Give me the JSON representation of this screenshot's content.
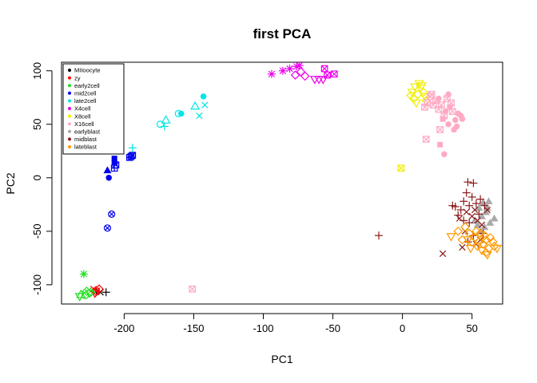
{
  "chart_data": {
    "type": "scatter",
    "title": "first PCA",
    "xlabel": "PC1",
    "ylabel": "PC2",
    "xlim": [
      -245,
      72
    ],
    "ylim": [
      -118,
      108
    ],
    "xticks": [
      -200,
      -150,
      -100,
      -50,
      0,
      50
    ],
    "yticks": [
      -100,
      -50,
      0,
      50,
      100
    ],
    "grid": false,
    "legend_position": "top-left",
    "series": [
      {
        "name": "MIIoocyte",
        "color": "#000000",
        "points": [
          {
            "x": -220,
            "y": -107,
            "shape": "plus"
          },
          {
            "x": -217,
            "y": -107,
            "shape": "cross"
          },
          {
            "x": -213,
            "y": -107,
            "shape": "plus"
          }
        ]
      },
      {
        "name": "zy",
        "color": "#ff0000",
        "points": [
          {
            "x": -222,
            "y": -104,
            "shape": "cross"
          },
          {
            "x": -220,
            "y": -106,
            "shape": "box-x"
          },
          {
            "x": -218,
            "y": -104,
            "shape": "diamond-open"
          },
          {
            "x": -221,
            "y": -108,
            "shape": "triangle-down"
          }
        ]
      },
      {
        "name": "early2cell",
        "color": "#22dd22",
        "points": [
          {
            "x": -229,
            "y": -90,
            "shape": "asterisk"
          },
          {
            "x": -227,
            "y": -106,
            "shape": "diamond-open"
          },
          {
            "x": -225,
            "y": -108,
            "shape": "triangle-down"
          },
          {
            "x": -231,
            "y": -109,
            "shape": "triangle-open"
          },
          {
            "x": -228,
            "y": -110,
            "shape": "circle-open"
          },
          {
            "x": -224,
            "y": -107,
            "shape": "diamond-open"
          },
          {
            "x": -232,
            "y": -111,
            "shape": "triangle-down"
          }
        ]
      },
      {
        "name": "mid2cell",
        "color": "#0000ee",
        "points": [
          {
            "x": -212,
            "y": 7,
            "shape": "triangle-filled"
          },
          {
            "x": -211,
            "y": 0,
            "shape": "circle-filled"
          },
          {
            "x": -209,
            "y": -34,
            "shape": "circle-x"
          },
          {
            "x": -212,
            "y": -47,
            "shape": "circle-x"
          },
          {
            "x": -207,
            "y": 18,
            "shape": "square-filled"
          },
          {
            "x": -207,
            "y": 14,
            "shape": "square-filled"
          },
          {
            "x": -207,
            "y": 9,
            "shape": "box-plus"
          },
          {
            "x": -206,
            "y": 12,
            "shape": "box-x"
          },
          {
            "x": -195,
            "y": 20,
            "shape": "box-plus"
          },
          {
            "x": -194,
            "y": 21,
            "shape": "box-x"
          },
          {
            "x": -196,
            "y": 19,
            "shape": "box-plus"
          }
        ]
      },
      {
        "name": "late2cell",
        "color": "#00e5e5",
        "points": [
          {
            "x": -194,
            "y": 28,
            "shape": "plus"
          },
          {
            "x": -174,
            "y": 50,
            "shape": "circle-open"
          },
          {
            "x": -170,
            "y": 54,
            "shape": "triangle-open"
          },
          {
            "x": -171,
            "y": 48,
            "shape": "plus"
          },
          {
            "x": -161,
            "y": 60,
            "shape": "circle-open"
          },
          {
            "x": -159,
            "y": 60,
            "shape": "circle-filled"
          },
          {
            "x": -149,
            "y": 67,
            "shape": "triangle-open"
          },
          {
            "x": -146,
            "y": 58,
            "shape": "cross"
          },
          {
            "x": -142,
            "y": 68,
            "shape": "cross"
          },
          {
            "x": -143,
            "y": 76,
            "shape": "circle-filled"
          }
        ]
      },
      {
        "name": "X4cell",
        "color": "#ee00ee",
        "points": [
          {
            "x": -94,
            "y": 97,
            "shape": "asterisk"
          },
          {
            "x": -86,
            "y": 100,
            "shape": "asterisk"
          },
          {
            "x": -81,
            "y": 102,
            "shape": "asterisk"
          },
          {
            "x": -76,
            "y": 104,
            "shape": "asterisk"
          },
          {
            "x": -74,
            "y": 105,
            "shape": "asterisk"
          },
          {
            "x": -77,
            "y": 96,
            "shape": "diamond-open"
          },
          {
            "x": -73,
            "y": 99,
            "shape": "diamond-open"
          },
          {
            "x": -70,
            "y": 95,
            "shape": "diamond-open"
          },
          {
            "x": -63,
            "y": 92,
            "shape": "triangle-down"
          },
          {
            "x": -60,
            "y": 92,
            "shape": "triangle-down"
          },
          {
            "x": -57,
            "y": 92,
            "shape": "triangle-down"
          },
          {
            "x": -56,
            "y": 102,
            "shape": "box-x"
          },
          {
            "x": -54,
            "y": 96,
            "shape": "box-x"
          },
          {
            "x": -49,
            "y": 97,
            "shape": "box-x"
          }
        ]
      },
      {
        "name": "X8cell",
        "color": "#eeee00",
        "points": [
          {
            "x": 7,
            "y": 80,
            "shape": "triangle-down"
          },
          {
            "x": 9,
            "y": 85,
            "shape": "triangle-down"
          },
          {
            "x": 11,
            "y": 78,
            "shape": "diamond-open"
          },
          {
            "x": 13,
            "y": 84,
            "shape": "triangle-down"
          },
          {
            "x": 8,
            "y": 74,
            "shape": "diamond-open"
          },
          {
            "x": 15,
            "y": 80,
            "shape": "diamond-open"
          },
          {
            "x": 10,
            "y": 70,
            "shape": "triangle-down"
          },
          {
            "x": 16,
            "y": 76,
            "shape": "triangle-down"
          },
          {
            "x": 12,
            "y": 88,
            "shape": "triangle-down"
          },
          {
            "x": 6,
            "y": 77,
            "shape": "diamond-open"
          },
          {
            "x": 17,
            "y": 72,
            "shape": "diamond-open"
          },
          {
            "x": 14,
            "y": 86,
            "shape": "triangle-down"
          },
          {
            "x": -1,
            "y": 9,
            "shape": "box-x"
          }
        ]
      },
      {
        "name": "X16cell",
        "color": "#ffaac4",
        "points": [
          {
            "x": 20,
            "y": 76,
            "shape": "box-x"
          },
          {
            "x": 24,
            "y": 72,
            "shape": "box-x"
          },
          {
            "x": 28,
            "y": 68,
            "shape": "box-x"
          },
          {
            "x": 32,
            "y": 74,
            "shape": "box-x"
          },
          {
            "x": 35,
            "y": 70,
            "shape": "box-x"
          },
          {
            "x": 26,
            "y": 64,
            "shape": "box-x"
          },
          {
            "x": 36,
            "y": 62,
            "shape": "box-x"
          },
          {
            "x": 40,
            "y": 60,
            "shape": "circle-filled"
          },
          {
            "x": 42,
            "y": 58,
            "shape": "circle-filled"
          },
          {
            "x": 30,
            "y": 58,
            "shape": "box-x"
          },
          {
            "x": 38,
            "y": 54,
            "shape": "circle-filled"
          },
          {
            "x": 22,
            "y": 68,
            "shape": "box-x"
          },
          {
            "x": 34,
            "y": 66,
            "shape": "square-filled"
          },
          {
            "x": 29,
            "y": 55,
            "shape": "square-filled"
          },
          {
            "x": 26,
            "y": 74,
            "shape": "circle-filled"
          },
          {
            "x": 18,
            "y": 70,
            "shape": "box-x"
          },
          {
            "x": 31,
            "y": 62,
            "shape": "circle-filled"
          },
          {
            "x": 16,
            "y": 66,
            "shape": "box-x"
          },
          {
            "x": 39,
            "y": 48,
            "shape": "circle-filled"
          },
          {
            "x": 27,
            "y": 45,
            "shape": "box-x"
          },
          {
            "x": 33,
            "y": 50,
            "shape": "circle-filled"
          },
          {
            "x": 37,
            "y": 45,
            "shape": "circle-filled"
          },
          {
            "x": 17,
            "y": 36,
            "shape": "box-x"
          },
          {
            "x": 27,
            "y": 31,
            "shape": "square-filled"
          },
          {
            "x": 30,
            "y": 22,
            "shape": "circle-filled"
          },
          {
            "x": 21,
            "y": 78,
            "shape": "box-x"
          },
          {
            "x": 33,
            "y": 78,
            "shape": "circle-filled"
          },
          {
            "x": 43,
            "y": 55,
            "shape": "circle-filled"
          },
          {
            "x": -151,
            "y": -104,
            "shape": "box-x"
          }
        ]
      },
      {
        "name": "earlyblast",
        "color": "#aaaaaa",
        "points": [
          {
            "x": 55,
            "y": -28,
            "shape": "triangle-filled"
          },
          {
            "x": 58,
            "y": -23,
            "shape": "triangle-filled"
          },
          {
            "x": 62,
            "y": -22,
            "shape": "triangle-filled"
          },
          {
            "x": 60,
            "y": -32,
            "shape": "triangle-filled"
          },
          {
            "x": 66,
            "y": -38,
            "shape": "triangle-filled"
          },
          {
            "x": 57,
            "y": -36,
            "shape": "triangle-filled"
          },
          {
            "x": 63,
            "y": -42,
            "shape": "triangle-filled"
          },
          {
            "x": 54,
            "y": -44,
            "shape": "triangle-filled"
          },
          {
            "x": 59,
            "y": -46,
            "shape": "triangle-filled"
          },
          {
            "x": 52,
            "y": -40,
            "shape": "triangle-filled"
          },
          {
            "x": 61,
            "y": -28,
            "shape": "triangle-filled"
          },
          {
            "x": 56,
            "y": -50,
            "shape": "triangle-filled"
          }
        ]
      },
      {
        "name": "midblast",
        "color": "#8b1a1a",
        "points": [
          {
            "x": 47,
            "y": -4,
            "shape": "plus"
          },
          {
            "x": 51,
            "y": -5,
            "shape": "plus"
          },
          {
            "x": 46,
            "y": -14,
            "shape": "plus"
          },
          {
            "x": 50,
            "y": -18,
            "shape": "plus"
          },
          {
            "x": 44,
            "y": -22,
            "shape": "plus"
          },
          {
            "x": 48,
            "y": -26,
            "shape": "plus"
          },
          {
            "x": 53,
            "y": -24,
            "shape": "plus"
          },
          {
            "x": 56,
            "y": -20,
            "shape": "plus"
          },
          {
            "x": 38,
            "y": -27,
            "shape": "plus"
          },
          {
            "x": 42,
            "y": -30,
            "shape": "plus"
          },
          {
            "x": 46,
            "y": -32,
            "shape": "cross"
          },
          {
            "x": 50,
            "y": -36,
            "shape": "cross"
          },
          {
            "x": 54,
            "y": -40,
            "shape": "cross"
          },
          {
            "x": 57,
            "y": -44,
            "shape": "cross"
          },
          {
            "x": 44,
            "y": -40,
            "shape": "plus"
          },
          {
            "x": 41,
            "y": -38,
            "shape": "cross"
          },
          {
            "x": 48,
            "y": -42,
            "shape": "plus"
          },
          {
            "x": 52,
            "y": -30,
            "shape": "cross"
          },
          {
            "x": 55,
            "y": -34,
            "shape": "plus"
          },
          {
            "x": 59,
            "y": -26,
            "shape": "plus"
          },
          {
            "x": 61,
            "y": -30,
            "shape": "cross"
          },
          {
            "x": 45,
            "y": -50,
            "shape": "cross"
          },
          {
            "x": 51,
            "y": -54,
            "shape": "plus"
          },
          {
            "x": 56,
            "y": -58,
            "shape": "cross"
          },
          {
            "x": 43,
            "y": -65,
            "shape": "cross"
          },
          {
            "x": 53,
            "y": -62,
            "shape": "cross"
          },
          {
            "x": 58,
            "y": -52,
            "shape": "plus"
          },
          {
            "x": 47,
            "y": -60,
            "shape": "plus"
          },
          {
            "x": 40,
            "y": -35,
            "shape": "plus"
          },
          {
            "x": 36,
            "y": -26,
            "shape": "plus"
          },
          {
            "x": -17,
            "y": -54,
            "shape": "plus"
          },
          {
            "x": 29,
            "y": -71,
            "shape": "cross"
          }
        ]
      },
      {
        "name": "lateblast",
        "color": "#ff9900",
        "points": [
          {
            "x": 35,
            "y": -55,
            "shape": "triangle-down"
          },
          {
            "x": 40,
            "y": -50,
            "shape": "diamond-open"
          },
          {
            "x": 45,
            "y": -46,
            "shape": "diamond-open"
          },
          {
            "x": 48,
            "y": -52,
            "shape": "diamond-open"
          },
          {
            "x": 52,
            "y": -56,
            "shape": "diamond-open"
          },
          {
            "x": 55,
            "y": -60,
            "shape": "diamond-open"
          },
          {
            "x": 58,
            "y": -62,
            "shape": "diamond-open"
          },
          {
            "x": 60,
            "y": -58,
            "shape": "diamond-open"
          },
          {
            "x": 62,
            "y": -66,
            "shape": "diamond-open"
          },
          {
            "x": 65,
            "y": -60,
            "shape": "diamond-open"
          },
          {
            "x": 68,
            "y": -66,
            "shape": "triangle-down"
          },
          {
            "x": 61,
            "y": -72,
            "shape": "triangle-down"
          },
          {
            "x": 57,
            "y": -68,
            "shape": "triangle-down"
          },
          {
            "x": 54,
            "y": -64,
            "shape": "diamond-open"
          },
          {
            "x": 50,
            "y": -60,
            "shape": "diamond-open"
          },
          {
            "x": 47,
            "y": -58,
            "shape": "triangle-down"
          },
          {
            "x": 53,
            "y": -50,
            "shape": "diamond-open"
          },
          {
            "x": 59,
            "y": -54,
            "shape": "diamond-open"
          },
          {
            "x": 63,
            "y": -56,
            "shape": "diamond-open"
          },
          {
            "x": 56,
            "y": -52,
            "shape": "diamond-open"
          },
          {
            "x": 43,
            "y": -58,
            "shape": "diamond-open"
          },
          {
            "x": 66,
            "y": -64,
            "shape": "diamond-open"
          },
          {
            "x": 60,
            "y": -70,
            "shape": "diamond-open"
          },
          {
            "x": 49,
            "y": -66,
            "shape": "triangle-down"
          }
        ]
      }
    ]
  }
}
